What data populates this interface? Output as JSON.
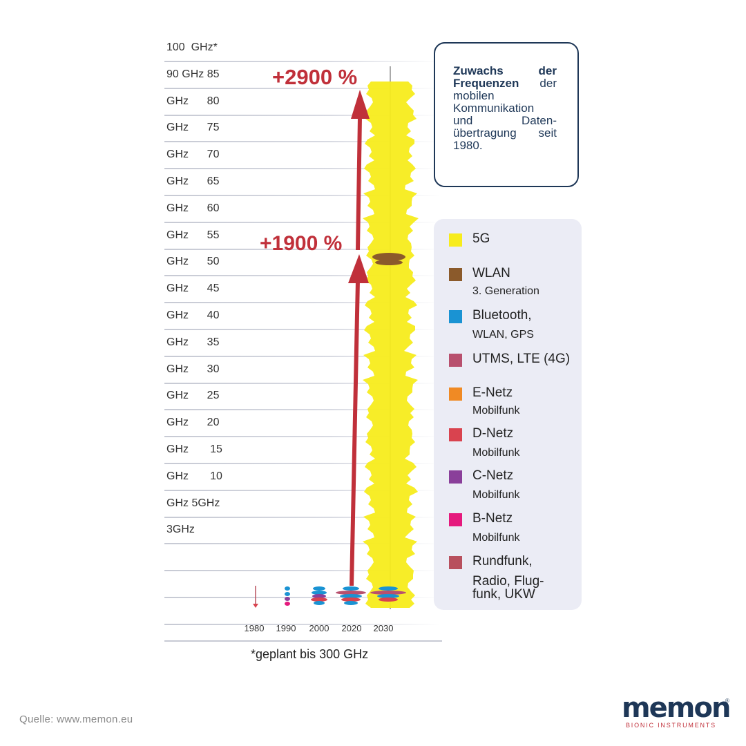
{
  "chart_data": {
    "type": "bar",
    "title": "",
    "xlabel": "",
    "ylabel": "",
    "y_ticks": [
      "100  GHz*",
      "90 GHz 85",
      "GHz      80",
      "GHz      75",
      "GHz      70",
      "GHz      65",
      "GHz      60",
      "GHz      55",
      "GHz      50",
      "GHz      45",
      "GHz      40",
      "GHz      35",
      "GHz      30",
      "GHz      25",
      "GHz      20",
      "GHz       15",
      "GHz       10",
      "GHz 5GHz",
      "3GHz"
    ],
    "categories": [
      "1980",
      "1990",
      "2000",
      "2020",
      "2030"
    ],
    "approx_max_ghz": [
      1,
      2,
      3,
      5,
      100
    ],
    "annotations": [
      {
        "text": "+1900 %",
        "from_year": "2020",
        "to_value_ghz": 100
      },
      {
        "text": "+2900 %",
        "from_year": "2030",
        "to_value_ghz": 100
      }
    ],
    "footnote": "*geplant bis 300 GHz"
  },
  "info": {
    "bold": "Zuwachs der Frequenzen",
    "rest": " der mobilen Kommunikation und Daten- übertragung seit 1980."
  },
  "legend": [
    {
      "label": "5G",
      "sub": "",
      "color": "#f7ec1c"
    },
    {
      "label": "WLAN",
      "sub": "3. Generation",
      "color": "#8b5a2b"
    },
    {
      "label": "Bluetooth,",
      "sub": "WLAN, GPS",
      "color": "#1a93d3"
    },
    {
      "label": "UTMS, LTE (4G)",
      "sub": "",
      "color": "#b8506e"
    },
    {
      "label": "E-Netz",
      "sub": "Mobilfunk",
      "color": "#f08a24"
    },
    {
      "label": "D-Netz",
      "sub": "Mobilfunk",
      "color": "#d9434f"
    },
    {
      "label": "C-Netz",
      "sub": "Mobilfunk",
      "color": "#8a3f9a"
    },
    {
      "label": "B-Netz",
      "sub": "Mobilfunk",
      "color": "#e5197d"
    },
    {
      "label": "Rundfunk,",
      "sub": "Radio, Flug-\nfunk, UKW",
      "color": "#b8505e"
    }
  ],
  "source": "Quelle: www.memon.eu",
  "logo": {
    "word": "memon",
    "reg": "®",
    "sub": "BIONIC INSTRUMENTS"
  }
}
